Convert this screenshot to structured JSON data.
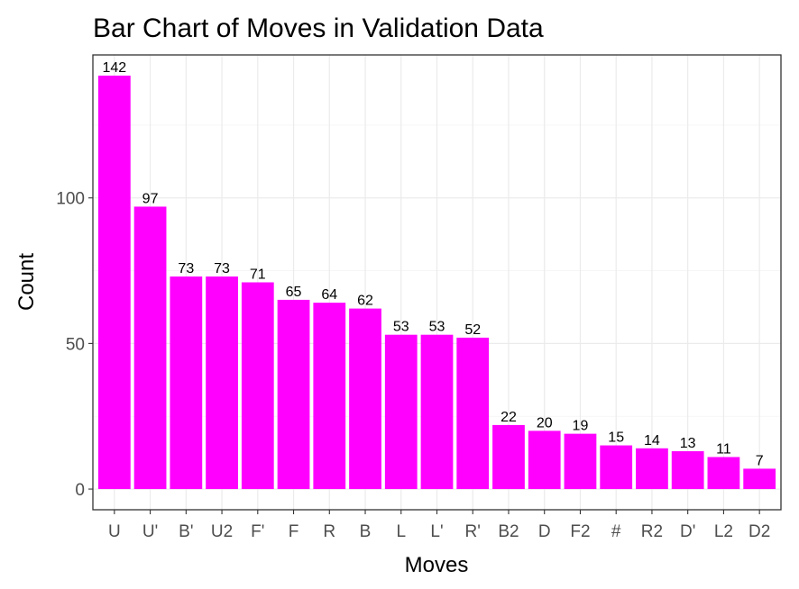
{
  "chart_data": {
    "type": "bar",
    "title": "Bar Chart of Moves in Validation Data",
    "xlabel": "Moves",
    "ylabel": "Count",
    "categories": [
      "U",
      "U'",
      "B'",
      "U2",
      "F'",
      "F",
      "R",
      "B",
      "L",
      "L'",
      "R'",
      "B2",
      "D",
      "F2",
      "#",
      "R2",
      "D'",
      "L2",
      "D2"
    ],
    "values": [
      142,
      97,
      73,
      73,
      71,
      65,
      64,
      62,
      53,
      53,
      52,
      22,
      20,
      19,
      15,
      14,
      13,
      11,
      7
    ],
    "yticks": [
      0,
      50,
      100
    ],
    "ylim": [
      -7.1,
      149.1
    ],
    "bar_color": "#FF00FF",
    "grid": true,
    "legend": "none",
    "data_labels": true
  }
}
